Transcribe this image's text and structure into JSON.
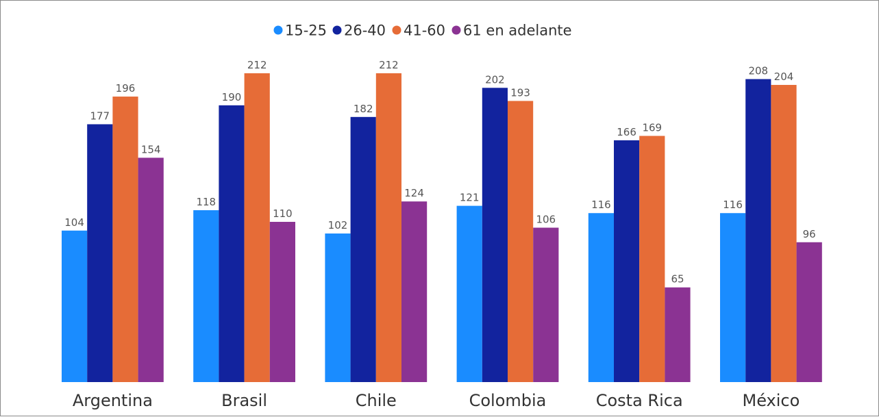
{
  "chart_data": {
    "type": "bar",
    "categories": [
      "Argentina",
      "Brasil",
      "Chile",
      "Colombia",
      "Costa Rica",
      "México"
    ],
    "series": [
      {
        "name": "15-25",
        "color": "#1a8cff",
        "values": [
          104,
          118,
          102,
          121,
          116,
          116
        ]
      },
      {
        "name": "26-40",
        "color": "#12239e",
        "values": [
          177,
          190,
          182,
          202,
          166,
          208
        ]
      },
      {
        "name": "41-60",
        "color": "#e66c37",
        "values": [
          196,
          212,
          212,
          193,
          169,
          204
        ]
      },
      {
        "name": "61 en adelante",
        "color": "#8b3393",
        "values": [
          154,
          110,
          124,
          106,
          65,
          96
        ]
      }
    ],
    "ylim": [
      0,
      212
    ],
    "legend_position": "top-center",
    "grid": false
  }
}
